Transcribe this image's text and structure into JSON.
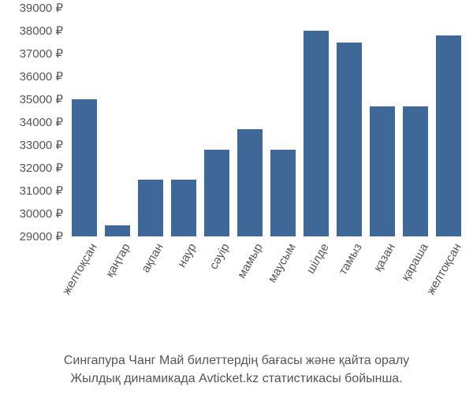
{
  "chart": {
    "type": "bar",
    "categories": [
      "желтоқсан",
      "қаңтар",
      "ақпан",
      "наур",
      "сәуір",
      "мамыр",
      "маусым",
      "шілде",
      "тамыз",
      "қазан",
      "қараша",
      "желтоқсан"
    ],
    "values": [
      35000,
      29500,
      31500,
      31500,
      32800,
      33700,
      32800,
      38000,
      37500,
      34700,
      34700,
      37800
    ],
    "bar_color": "#3f6797",
    "background_color": "#ffffff",
    "ytick_labels": [
      "29000 ₽",
      "30000 ₽",
      "31000 ₽",
      "32000 ₽",
      "33000 ₽",
      "34000 ₽",
      "35000 ₽",
      "36000 ₽",
      "37000 ₽",
      "38000 ₽",
      "39000 ₽"
    ],
    "ytick_values": [
      29000,
      30000,
      31000,
      32000,
      33000,
      34000,
      35000,
      36000,
      37000,
      38000,
      39000
    ],
    "ylim": [
      29000,
      39000
    ],
    "bar_width_ratio": 0.78,
    "axis_text_color": "#555555",
    "axis_fontsize": 15,
    "xlabel_rotation_deg": -60,
    "caption_fontsize": 16,
    "caption_color": "#555555"
  },
  "caption": {
    "line1": "Сингапура Чанг Май билеттердің бағасы және қайта оралу",
    "line2": "Жылдық динамикада Avticket.kz статистикасы бойынша."
  }
}
